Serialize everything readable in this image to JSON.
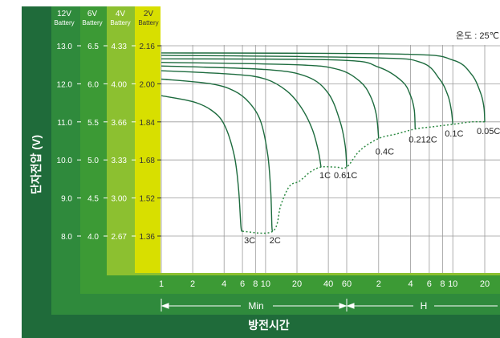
{
  "chart_data": {
    "type": "line",
    "title": "",
    "xlabel": "방전시간",
    "ylabel": "단자전압 (V)",
    "temperature_note": "온도 : 25℃",
    "x_scale": "log",
    "x_unit_labels": {
      "minutes": "Min",
      "hours": "H"
    },
    "x_ticks_min": [
      {
        "label": "1",
        "value": 1
      },
      {
        "label": "2",
        "value": 2
      },
      {
        "label": "4",
        "value": 4
      },
      {
        "label": "6",
        "value": 6
      },
      {
        "label": "8",
        "value": 8
      },
      {
        "label": "10",
        "value": 10
      },
      {
        "label": "20",
        "value": 20
      },
      {
        "label": "40",
        "value": 40
      },
      {
        "label": "60",
        "value": 60
      }
    ],
    "x_ticks_hour": [
      {
        "label": "2",
        "value": 120
      },
      {
        "label": "4",
        "value": 240
      },
      {
        "label": "6",
        "value": 360
      },
      {
        "label": "8",
        "value": 480
      },
      {
        "label": "10",
        "value": 600
      },
      {
        "label": "20",
        "value": 1200
      }
    ],
    "voltage_scales": [
      {
        "header": [
          "12V",
          "Battery"
        ],
        "color": "#1f6b3a",
        "ticks": [
          "13.0",
          "12.0",
          "11.0",
          "10.0",
          "9.0",
          "8.0"
        ]
      },
      {
        "header": [
          "6V",
          "Battery"
        ],
        "color": "#3c9a35",
        "ticks": [
          "6.5",
          "6.0",
          "5.5",
          "5.0",
          "4.5",
          "4.0"
        ]
      },
      {
        "header": [
          "4V",
          "Battery"
        ],
        "color": "#8cc030",
        "ticks": [
          "4.33",
          "4.00",
          "3.66",
          "3.33",
          "3.00",
          "2.67"
        ]
      },
      {
        "header": [
          "2V",
          "Battery"
        ],
        "color": "#d8df00",
        "ticks": [
          "2.16",
          "2.00",
          "1.84",
          "1.68",
          "1.52",
          "1.36"
        ]
      }
    ],
    "ylim_2v": [
      1.2,
      2.24
    ],
    "series": [
      {
        "name": "3C",
        "points": [
          [
            1,
            1.95
          ],
          [
            2,
            1.925
          ],
          [
            3,
            1.89
          ],
          [
            4,
            1.83
          ],
          [
            5,
            1.7
          ],
          [
            5.5,
            1.56
          ],
          [
            5.8,
            1.4
          ],
          [
            6,
            1.38
          ]
        ]
      },
      {
        "name": "2C",
        "points": [
          [
            1,
            2.02
          ],
          [
            3,
            2.0
          ],
          [
            5,
            1.97
          ],
          [
            7,
            1.92
          ],
          [
            9,
            1.84
          ],
          [
            10.5,
            1.7
          ],
          [
            11.2,
            1.55
          ],
          [
            11.5,
            1.4
          ],
          [
            11.7,
            1.38
          ]
        ]
      },
      {
        "name": "1C",
        "points": [
          [
            1,
            2.055
          ],
          [
            5,
            2.04
          ],
          [
            10,
            2.02
          ],
          [
            16,
            1.97
          ],
          [
            22,
            1.9
          ],
          [
            28,
            1.81
          ],
          [
            32,
            1.72
          ],
          [
            34,
            1.65
          ]
        ]
      },
      {
        "name": "0.61C",
        "points": [
          [
            1,
            2.075
          ],
          [
            10,
            2.06
          ],
          [
            25,
            2.03
          ],
          [
            40,
            1.96
          ],
          [
            52,
            1.84
          ],
          [
            58,
            1.74
          ],
          [
            60,
            1.65
          ]
        ]
      },
      {
        "name": "0.4C",
        "points": [
          [
            1,
            2.09
          ],
          [
            20,
            2.08
          ],
          [
            50,
            2.06
          ],
          [
            80,
            2.01
          ],
          [
            100,
            1.95
          ],
          [
            114,
            1.87
          ],
          [
            120,
            1.77
          ]
        ]
      },
      {
        "name": "0.212C",
        "points": [
          [
            1,
            2.105
          ],
          [
            50,
            2.1
          ],
          [
            120,
            2.07
          ],
          [
            200,
            2.01
          ],
          [
            240,
            1.95
          ],
          [
            260,
            1.89
          ],
          [
            265,
            1.81
          ]
        ]
      },
      {
        "name": "0.1C",
        "points": [
          [
            1,
            2.12
          ],
          [
            100,
            2.11
          ],
          [
            300,
            2.09
          ],
          [
            450,
            2.02
          ],
          [
            540,
            1.95
          ],
          [
            580,
            1.89
          ],
          [
            600,
            1.83
          ]
        ]
      },
      {
        "name": "0.05C",
        "points": [
          [
            1,
            2.13
          ],
          [
            200,
            2.125
          ],
          [
            600,
            2.1
          ],
          [
            900,
            2.04
          ],
          [
            1100,
            1.96
          ],
          [
            1180,
            1.9
          ],
          [
            1200,
            1.84
          ]
        ]
      }
    ],
    "cutoff_curve": [
      [
        6,
        1.38
      ],
      [
        11.7,
        1.38
      ],
      [
        14,
        1.49
      ],
      [
        17,
        1.57
      ],
      [
        21,
        1.59
      ],
      [
        27,
        1.63
      ],
      [
        34,
        1.65
      ],
      [
        47,
        1.65
      ],
      [
        60,
        1.65
      ],
      [
        80,
        1.72
      ],
      [
        120,
        1.77
      ],
      [
        180,
        1.79
      ],
      [
        265,
        1.81
      ],
      [
        400,
        1.82
      ],
      [
        600,
        1.83
      ],
      [
        900,
        1.84
      ],
      [
        1200,
        1.84
      ]
    ]
  }
}
